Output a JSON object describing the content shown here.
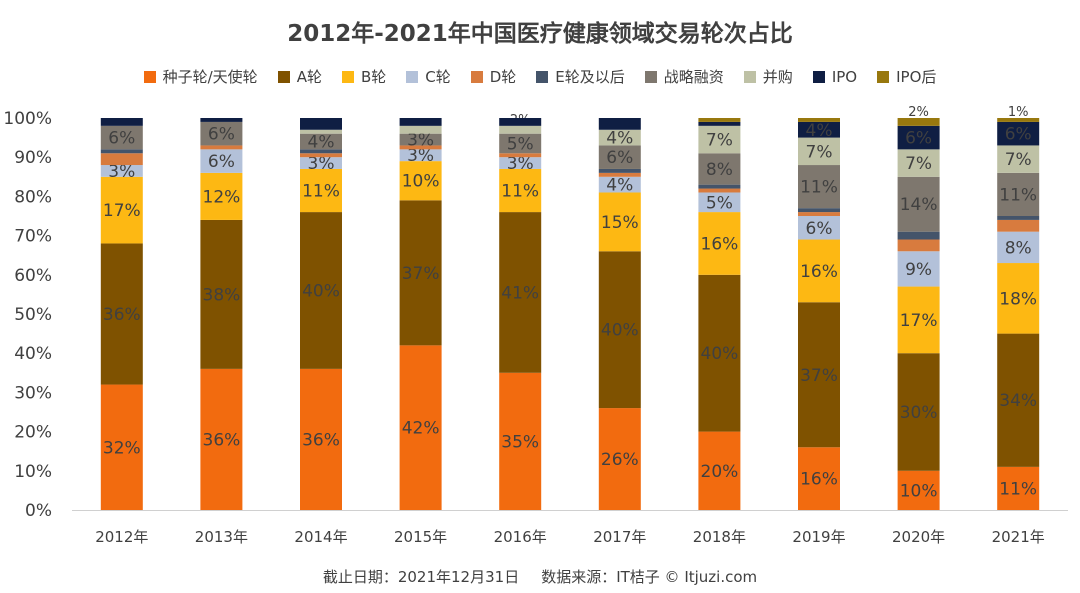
{
  "chart_data": {
    "type": "bar",
    "stacked": true,
    "title": "2012年-2021年中国医疗健康领域交易轮次占比",
    "categories": [
      "2012年",
      "2013年",
      "2014年",
      "2015年",
      "2016年",
      "2017年",
      "2018年",
      "2019年",
      "2020年",
      "2021年"
    ],
    "y_ticks": [
      "0%",
      "10%",
      "20%",
      "30%",
      "40%",
      "50%",
      "60%",
      "70%",
      "80%",
      "90%",
      "100%"
    ],
    "ylim": [
      0,
      100
    ],
    "grid": false,
    "legend_position": "top",
    "series": [
      {
        "name": "种子轮/天使轮",
        "color": "#F26B0F",
        "values": [
          32,
          36,
          36,
          42,
          35,
          26,
          20,
          16,
          10,
          11
        ],
        "labels": [
          "32%",
          "36%",
          "36%",
          "42%",
          "35%",
          "26%",
          "20%",
          "16%",
          "10%",
          "11%"
        ]
      },
      {
        "name": "A轮",
        "color": "#7F5200",
        "values": [
          36,
          38,
          40,
          37,
          41,
          40,
          40,
          37,
          30,
          34
        ],
        "labels": [
          "36%",
          "38%",
          "40%",
          "37%",
          "41%",
          "40%",
          "40%",
          "37%",
          "30%",
          "34%"
        ]
      },
      {
        "name": "B轮",
        "color": "#FDB813",
        "values": [
          17,
          12,
          11,
          10,
          11,
          15,
          16,
          16,
          17,
          18
        ],
        "labels": [
          "17%",
          "12%",
          "11%",
          "10%",
          "11%",
          "15%",
          "16%",
          "16%",
          "17%",
          "18%"
        ]
      },
      {
        "name": "C轮",
        "color": "#B3C1D9",
        "values": [
          3,
          6,
          3,
          3,
          3,
          4,
          5,
          6,
          9,
          8
        ],
        "labels": [
          "3%",
          "6%",
          "3%",
          "3%",
          "3%",
          "4%",
          "5%",
          "6%",
          "9%",
          "8%"
        ]
      },
      {
        "name": "D轮",
        "color": "#D87B3E",
        "values": [
          3,
          1,
          1,
          1,
          1,
          1,
          1,
          1,
          3,
          3
        ],
        "labels": [
          "",
          "",
          "",
          "",
          "",
          "",
          "",
          "",
          "",
          ""
        ]
      },
      {
        "name": "E轮及以后",
        "color": "#44546A",
        "values": [
          1,
          0,
          1,
          0,
          0,
          1,
          1,
          1,
          2,
          1
        ],
        "labels": [
          "",
          "",
          "",
          "",
          "",
          "",
          "",
          "",
          "",
          ""
        ]
      },
      {
        "name": "战略融资",
        "color": "#7E776E",
        "values": [
          6,
          6,
          4,
          3,
          5,
          6,
          8,
          11,
          14,
          11
        ],
        "labels": [
          "6%",
          "6%",
          "4%",
          "3%",
          "5%",
          "6%",
          "8%",
          "11%",
          "14%",
          "11%"
        ]
      },
      {
        "name": "并购",
        "color": "#BEC1A5",
        "values": [
          0,
          0,
          1,
          2,
          2,
          4,
          7,
          7,
          7,
          7
        ],
        "labels": [
          "",
          "",
          "",
          "",
          "2%",
          "4%",
          "7%",
          "7%",
          "7%",
          "7%"
        ]
      },
      {
        "name": "IPO",
        "color": "#0F1E43",
        "values": [
          2,
          1,
          3,
          2,
          2,
          3,
          1,
          4,
          6,
          6
        ],
        "labels": [
          "",
          "",
          "",
          "",
          "",
          "",
          "",
          "4%",
          "6%",
          "6%"
        ]
      },
      {
        "name": "IPO后",
        "color": "#98780E",
        "values": [
          0,
          0,
          0,
          0,
          0,
          0,
          1,
          1,
          2,
          1
        ],
        "labels": [
          "",
          "",
          "",
          "",
          "",
          "",
          "",
          "",
          "2%",
          "1%"
        ]
      }
    ]
  },
  "footer": {
    "cutoff": "截止日期：2021年12月31日",
    "source": "数据来源：IT桔子 © Itjuzi.com"
  }
}
